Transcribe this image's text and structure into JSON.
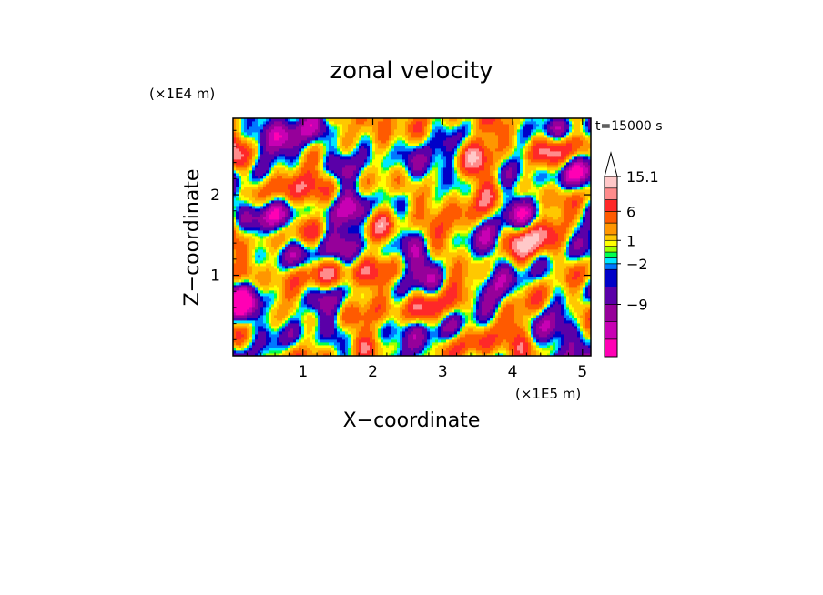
{
  "chart_data": {
    "type": "heatmap",
    "title": "zonal velocity",
    "time_label": "t=15000 s",
    "xlabel": "X−coordinate",
    "ylabel": "Z−coordinate",
    "x_scale_label": "(×1E5 m)",
    "y_scale_label": "(×1E4 m)",
    "xlim": [
      0,
      5.12
    ],
    "ylim": [
      0,
      2.95
    ],
    "x_ticks": [
      1,
      2,
      3,
      4,
      5
    ],
    "x_tick_labels": [
      "1",
      "2",
      "3",
      "4",
      "5"
    ],
    "y_ticks": [
      1,
      2
    ],
    "y_tick_labels": [
      "1",
      "2"
    ],
    "colorbar": {
      "levels_bottom_to_top": [
        {
          "value": -15,
          "color": "#ff00b4"
        },
        {
          "value": -12,
          "color": "#c800b4"
        },
        {
          "value": -9,
          "color": "#96009a"
        },
        {
          "value": -6,
          "color": "#5a00a8"
        },
        {
          "value": -3,
          "color": "#0000c8"
        },
        {
          "value": -2,
          "color": "#0078ff"
        },
        {
          "value": -1,
          "color": "#00e6ff"
        },
        {
          "value": 0,
          "color": "#00ff50"
        },
        {
          "value": 0.5,
          "color": "#a0ff00"
        },
        {
          "value": 1,
          "color": "#ffff00"
        },
        {
          "value": 2,
          "color": "#ffc800"
        },
        {
          "value": 4,
          "color": "#ff9600"
        },
        {
          "value": 6,
          "color": "#ff5a00"
        },
        {
          "value": 9,
          "color": "#ff2828"
        },
        {
          "value": 12,
          "color": "#ff8c8c"
        },
        {
          "value": 15.1,
          "color": "#ffc8c8"
        }
      ],
      "labels": [
        "15.1",
        "6",
        "1",
        "−2",
        "−9"
      ],
      "label_values": [
        15.1,
        6,
        1,
        -2,
        -9
      ],
      "extend_top": true
    }
  }
}
